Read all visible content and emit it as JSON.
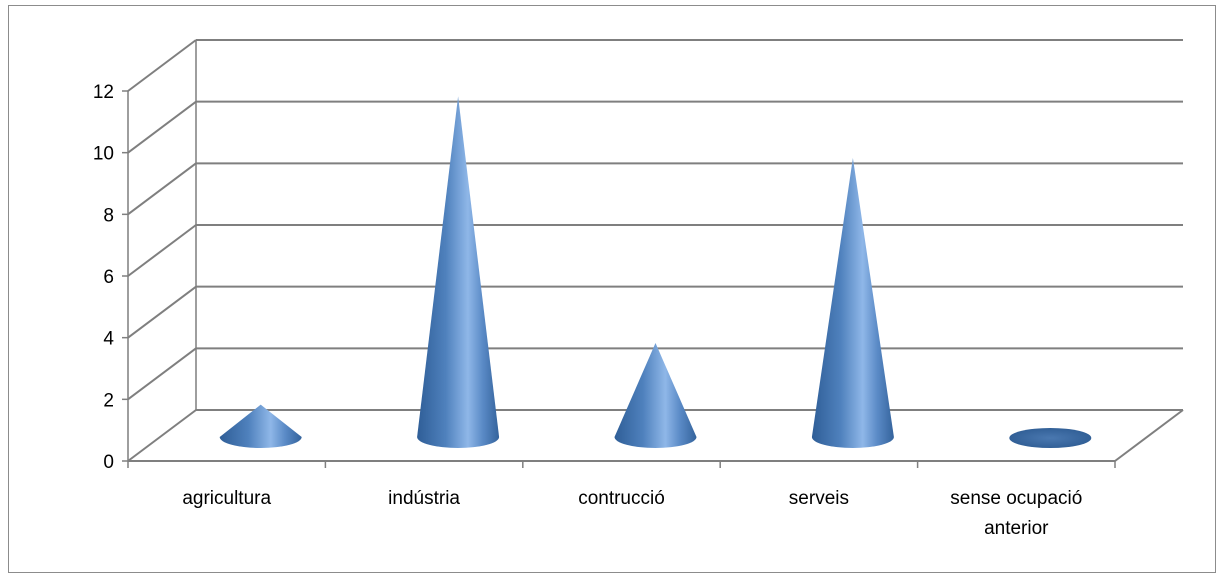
{
  "chart_data": {
    "type": "bar",
    "style": "3d-cone",
    "categories": [
      "agricultura",
      "indústria",
      "contrucció",
      "serveis",
      "sense ocupació anterior"
    ],
    "category_lines": [
      [
        "agricultura"
      ],
      [
        "indústria"
      ],
      [
        "contrucció"
      ],
      [
        "serveis"
      ],
      [
        "sense ocupació",
        "anterior"
      ]
    ],
    "values": [
      1,
      11,
      3,
      9,
      0
    ],
    "ylim": [
      0,
      12
    ],
    "yticks": [
      "0",
      "2",
      "4",
      "6",
      "8",
      "10",
      "12"
    ],
    "grid": true,
    "legend": "none",
    "colors": {
      "cone": "#4f81bd",
      "cone_light": "#9cc2ee",
      "cone_dark": "#2d5b92",
      "grid": "#7f7f7f"
    }
  }
}
